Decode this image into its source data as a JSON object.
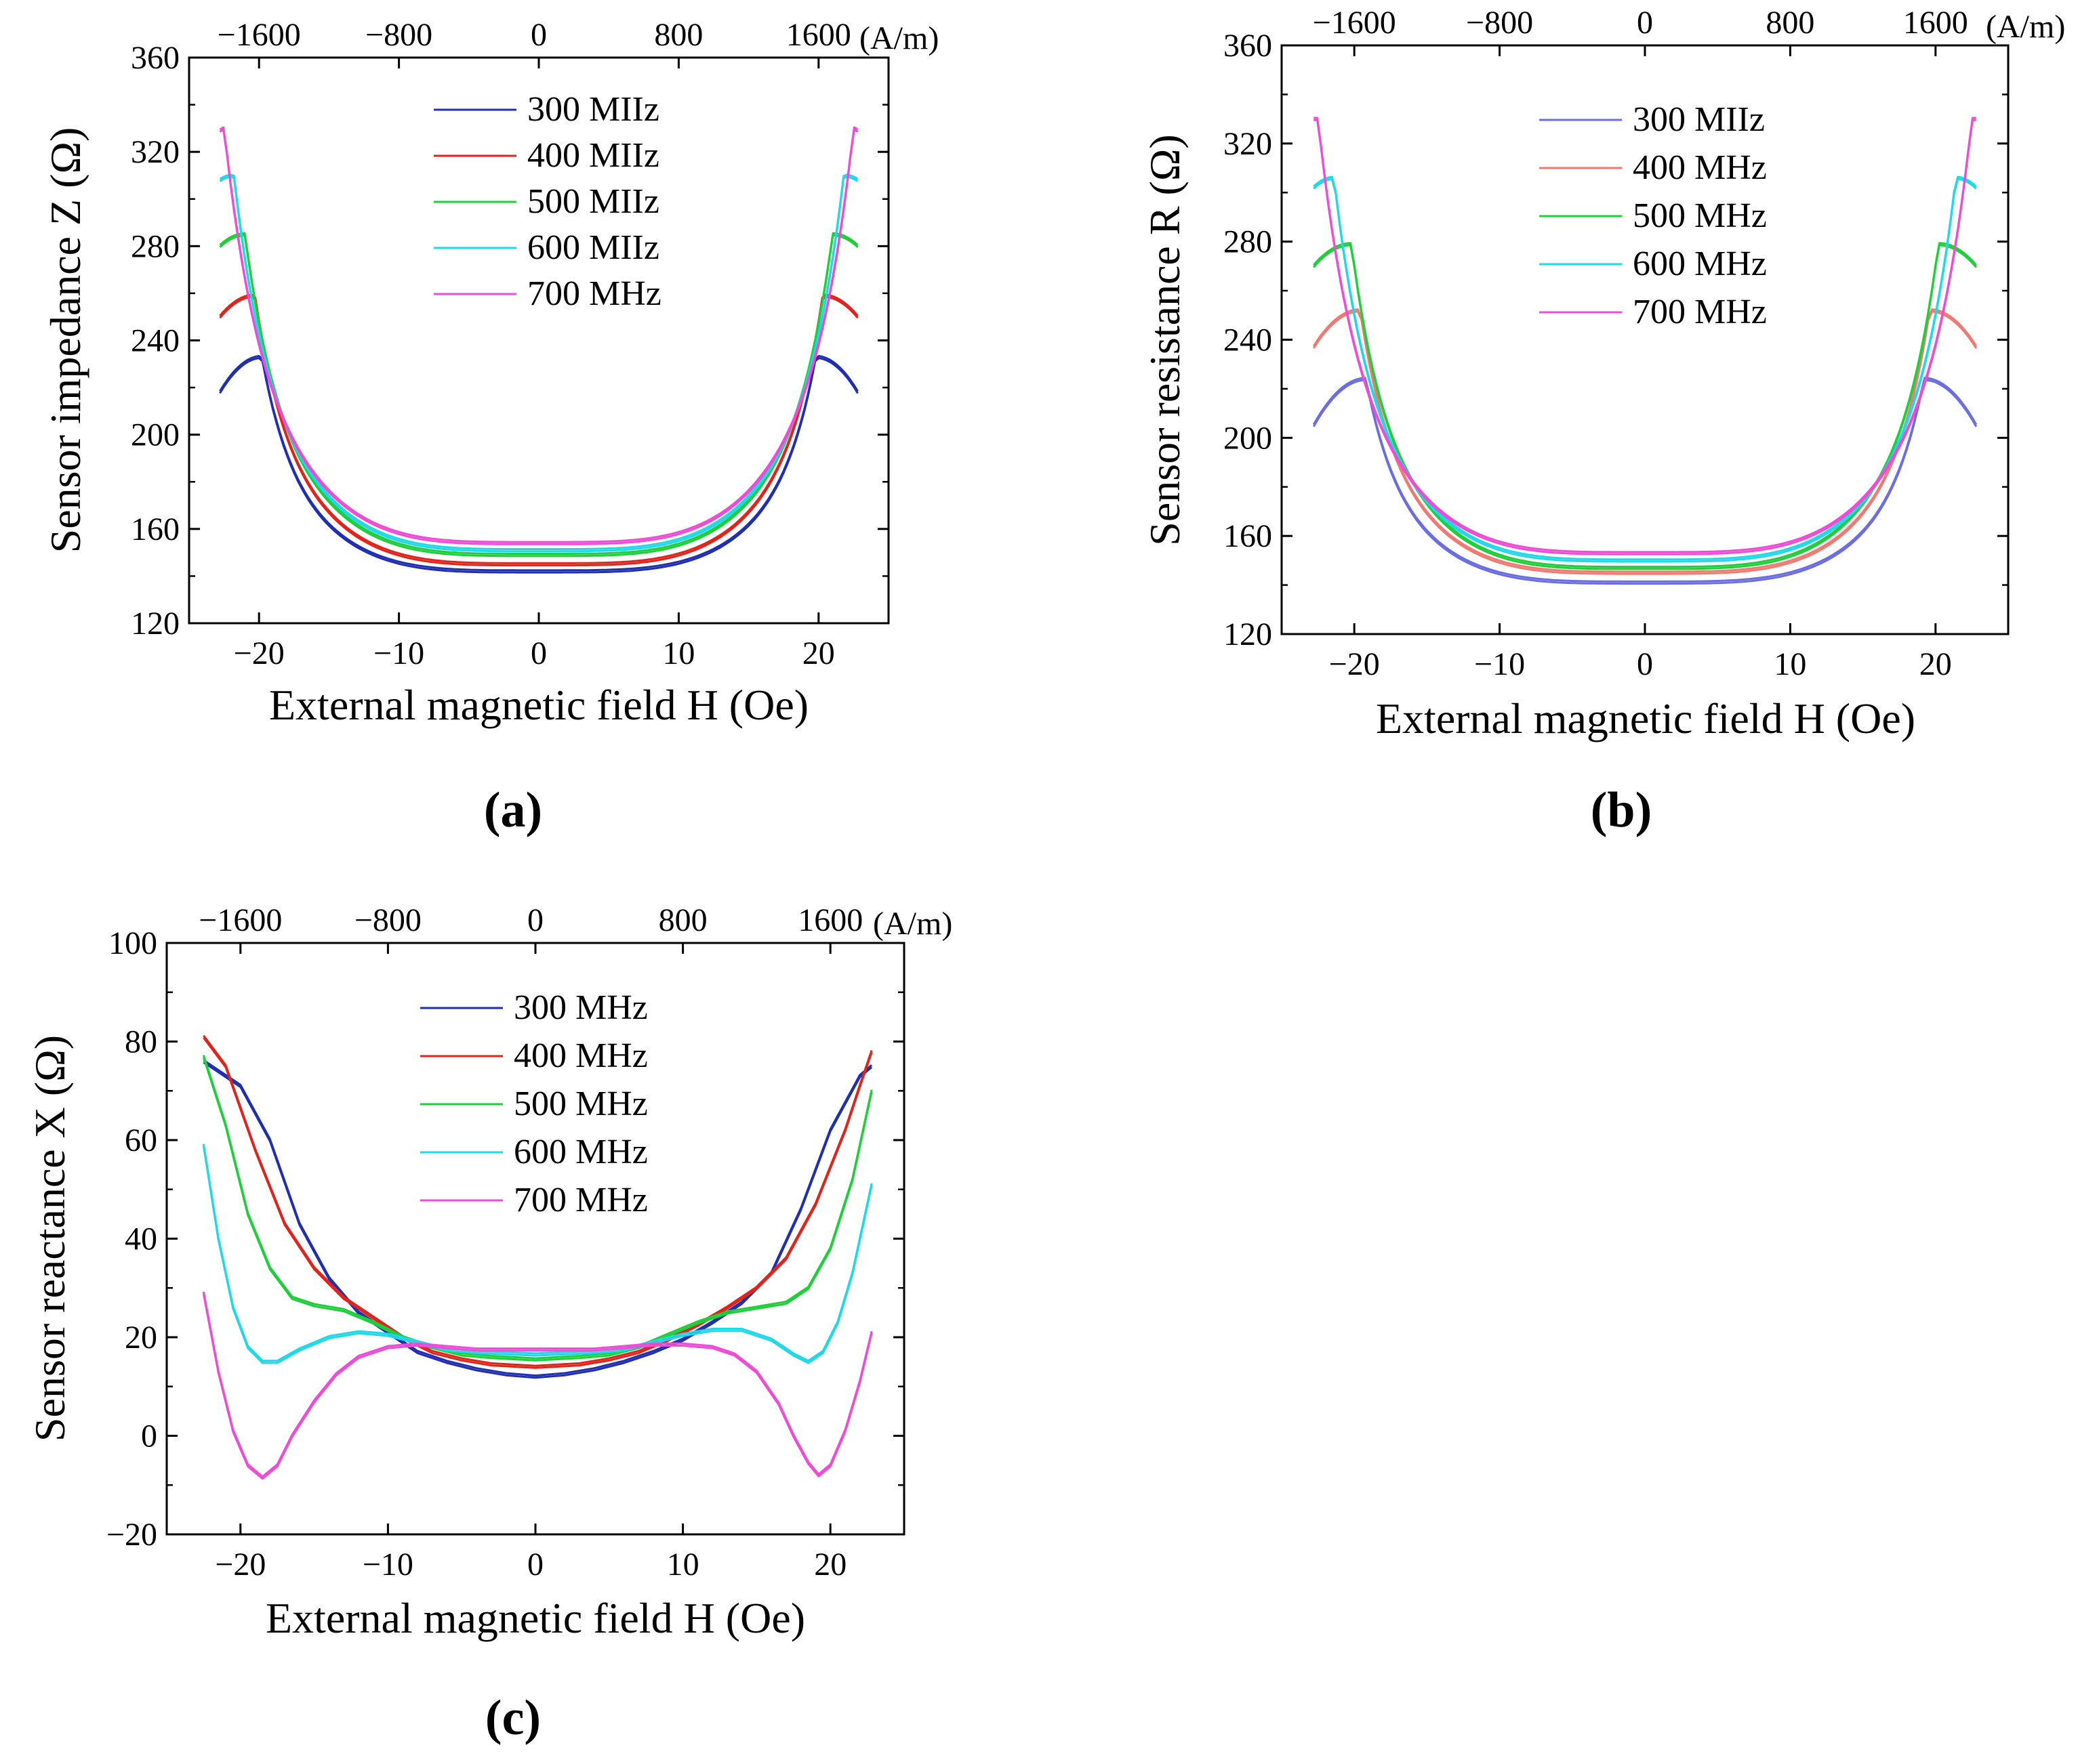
{
  "figure": {
    "panels": [
      "(a)",
      "(b)",
      "(c)"
    ]
  },
  "chart_data": [
    {
      "panel": "a",
      "type": "line",
      "xlabel": "External magnetic field H (Oe)",
      "ylabel": "Sensor impedance Z (Ω)",
      "top_axis_unit": "(A/m)",
      "top_ticks": [
        -1600,
        -800,
        0,
        800,
        1600
      ],
      "xlim": [
        -25,
        25
      ],
      "ylim": [
        120,
        360
      ],
      "xticks": [
        -20,
        -10,
        0,
        10,
        20
      ],
      "yticks": [
        120,
        160,
        200,
        240,
        280,
        320,
        360
      ],
      "legend_position": "top-center",
      "grid": false,
      "model": "bell",
      "series": [
        {
          "name": "300 MHz",
          "label": "300 MIIz",
          "color": "#1f2fb0",
          "min": 142,
          "peak": 233,
          "peak_h": 19.8,
          "edge": 218
        },
        {
          "name": "400 MHz",
          "label": "400 MIIz",
          "color": "#e0241c",
          "min": 145,
          "peak": 259,
          "peak_h": 20.3,
          "edge": 250
        },
        {
          "name": "500 MHz",
          "label": "500 MIIz",
          "color": "#1fcf3a",
          "min": 149,
          "peak": 285,
          "peak_h": 21.0,
          "edge": 280
        },
        {
          "name": "600 MHz",
          "label": "600 MIIz",
          "color": "#1fd8e8",
          "min": 151,
          "peak": 310,
          "peak_h": 21.8,
          "edge": 308
        },
        {
          "name": "700 MHz",
          "label": "700 MHz",
          "color": "#ee4cd6",
          "min": 154,
          "peak": 330,
          "peak_h": 22.5,
          "edge": 329
        }
      ]
    },
    {
      "panel": "b",
      "type": "line",
      "xlabel": "External magnetic field H (Oe)",
      "ylabel": "Sensor resistance R (Ω)",
      "top_axis_unit": "(A/m)",
      "top_ticks": [
        -1600,
        -800,
        0,
        800,
        1600
      ],
      "xlim": [
        -25,
        25
      ],
      "ylim": [
        120,
        360
      ],
      "xticks": [
        -20,
        -10,
        0,
        10,
        20
      ],
      "yticks": [
        120,
        160,
        200,
        240,
        280,
        320,
        360
      ],
      "legend_position": "top-center",
      "grid": false,
      "model": "bell",
      "series": [
        {
          "name": "300 MHz",
          "label": "300 MIIz",
          "color": "#6a6ee0",
          "min": 141,
          "peak": 224,
          "peak_h": 19.2,
          "edge": 205
        },
        {
          "name": "400 MHz",
          "label": "400 MHz",
          "color": "#f07a72",
          "min": 145,
          "peak": 252,
          "peak_h": 19.6,
          "edge": 237
        },
        {
          "name": "500 MHz",
          "label": "500 MHz",
          "color": "#1fcf3a",
          "min": 147,
          "peak": 279,
          "peak_h": 20.2,
          "edge": 270
        },
        {
          "name": "600 MHz",
          "label": "600 MHz",
          "color": "#1fd8e8",
          "min": 150,
          "peak": 306,
          "peak_h": 21.4,
          "edge": 302
        },
        {
          "name": "700 MHz",
          "label": "700 MHz",
          "color": "#ee4cd6",
          "min": 153,
          "peak": 330,
          "peak_h": 22.5,
          "edge": 330
        }
      ]
    },
    {
      "panel": "c",
      "type": "line",
      "xlabel": "External magnetic field H (Oe)",
      "ylabel": "Sensor reactance X (Ω)",
      "top_axis_unit": "(A/m)",
      "top_ticks": [
        -1600,
        -800,
        0,
        800,
        1600
      ],
      "xlim": [
        -25,
        25
      ],
      "ylim": [
        -20,
        100
      ],
      "xticks": [
        -20,
        -10,
        0,
        10,
        20
      ],
      "yticks": [
        -20,
        0,
        20,
        40,
        60,
        80,
        100
      ],
      "legend_position": "top-center",
      "grid": false,
      "model": "points",
      "series": [
        {
          "name": "300 MHz",
          "label": "300 MHz",
          "color": "#1f2fb0",
          "points": [
            [
              -22.5,
              76
            ],
            [
              -20,
              71
            ],
            [
              -18,
              60
            ],
            [
              -16,
              43
            ],
            [
              -14,
              32
            ],
            [
              -12,
              25
            ],
            [
              -10,
              21
            ],
            [
              -8,
              17
            ],
            [
              -6,
              15
            ],
            [
              -4,
              13.5
            ],
            [
              -2,
              12.5
            ],
            [
              0,
              12
            ],
            [
              2,
              12.5
            ],
            [
              4,
              13.5
            ],
            [
              6,
              15
            ],
            [
              8,
              17
            ],
            [
              10,
              19.5
            ],
            [
              12,
              23
            ],
            [
              14,
              27
            ],
            [
              16,
              33
            ],
            [
              18,
              46
            ],
            [
              20,
              62
            ],
            [
              22,
              73
            ],
            [
              22.8,
              75
            ]
          ]
        },
        {
          "name": "400 MHz",
          "label": "400 MHz",
          "color": "#e0241c",
          "points": [
            [
              -22.5,
              81
            ],
            [
              -21,
              75
            ],
            [
              -19,
              58
            ],
            [
              -17,
              43
            ],
            [
              -15,
              34
            ],
            [
              -13,
              28
            ],
            [
              -11,
              24
            ],
            [
              -9,
              20
            ],
            [
              -7,
              17
            ],
            [
              -5,
              15.5
            ],
            [
              -3,
              14.5
            ],
            [
              0,
              14
            ],
            [
              3,
              14.5
            ],
            [
              5,
              15.5
            ],
            [
              7,
              17
            ],
            [
              9,
              19.5
            ],
            [
              11,
              22.5
            ],
            [
              13,
              26
            ],
            [
              15,
              30
            ],
            [
              17,
              36
            ],
            [
              19,
              47
            ],
            [
              21,
              62
            ],
            [
              22,
              71
            ],
            [
              22.8,
              78
            ]
          ]
        },
        {
          "name": "500 MHz",
          "label": "500 MHz",
          "color": "#1fcf3a",
          "points": [
            [
              -22.5,
              77
            ],
            [
              -21,
              63
            ],
            [
              -19.5,
              45
            ],
            [
              -18,
              34
            ],
            [
              -16.5,
              28
            ],
            [
              -15,
              26.5
            ],
            [
              -13,
              25.5
            ],
            [
              -11,
              23
            ],
            [
              -9,
              20
            ],
            [
              -7,
              18
            ],
            [
              -5,
              16.5
            ],
            [
              -3,
              16
            ],
            [
              0,
              15.5
            ],
            [
              3,
              16
            ],
            [
              5,
              16.5
            ],
            [
              7,
              18
            ],
            [
              9,
              20.5
            ],
            [
              11,
              23
            ],
            [
              13,
              25
            ],
            [
              15,
              26
            ],
            [
              17,
              27
            ],
            [
              18.5,
              30
            ],
            [
              20,
              38
            ],
            [
              21.5,
              52
            ],
            [
              22.8,
              70
            ]
          ]
        },
        {
          "name": "600 MHz",
          "label": "600 MHz",
          "color": "#1fd8e8",
          "points": [
            [
              -22.5,
              59
            ],
            [
              -21.5,
              40
            ],
            [
              -20.5,
              26
            ],
            [
              -19.5,
              18
            ],
            [
              -18.5,
              15
            ],
            [
              -17.5,
              15
            ],
            [
              -16,
              17.5
            ],
            [
              -14,
              20
            ],
            [
              -12,
              21
            ],
            [
              -10,
              20.5
            ],
            [
              -8,
              19
            ],
            [
              -6,
              17.5
            ],
            [
              -4,
              17
            ],
            [
              0,
              16.5
            ],
            [
              4,
              17
            ],
            [
              6,
              17.5
            ],
            [
              8,
              19
            ],
            [
              10,
              20.5
            ],
            [
              12,
              21.5
            ],
            [
              14,
              21.5
            ],
            [
              16,
              19.5
            ],
            [
              17.5,
              16.5
            ],
            [
              18.5,
              15
            ],
            [
              19.5,
              17
            ],
            [
              20.5,
              23
            ],
            [
              21.5,
              33
            ],
            [
              22.8,
              51
            ]
          ]
        },
        {
          "name": "700 MHz",
          "label": "700 MHz",
          "color": "#ee4cd6",
          "points": [
            [
              -22.5,
              29
            ],
            [
              -21.5,
              13
            ],
            [
              -20.5,
              1
            ],
            [
              -19.5,
              -6
            ],
            [
              -18.5,
              -8.5
            ],
            [
              -17.5,
              -6
            ],
            [
              -16.5,
              0
            ],
            [
              -15,
              7
            ],
            [
              -13.5,
              12.5
            ],
            [
              -12,
              16
            ],
            [
              -10,
              18
            ],
            [
              -8,
              18.5
            ],
            [
              -6,
              18
            ],
            [
              -4,
              17.5
            ],
            [
              0,
              17.5
            ],
            [
              4,
              17.5
            ],
            [
              6,
              18
            ],
            [
              8,
              18.5
            ],
            [
              10,
              18.5
            ],
            [
              12,
              18
            ],
            [
              13.5,
              16.5
            ],
            [
              15,
              13
            ],
            [
              16.5,
              6.5
            ],
            [
              17.5,
              0
            ],
            [
              18.5,
              -5.5
            ],
            [
              19.2,
              -8
            ],
            [
              20,
              -6
            ],
            [
              21,
              1
            ],
            [
              22,
              11
            ],
            [
              22.8,
              21
            ]
          ]
        }
      ]
    }
  ]
}
